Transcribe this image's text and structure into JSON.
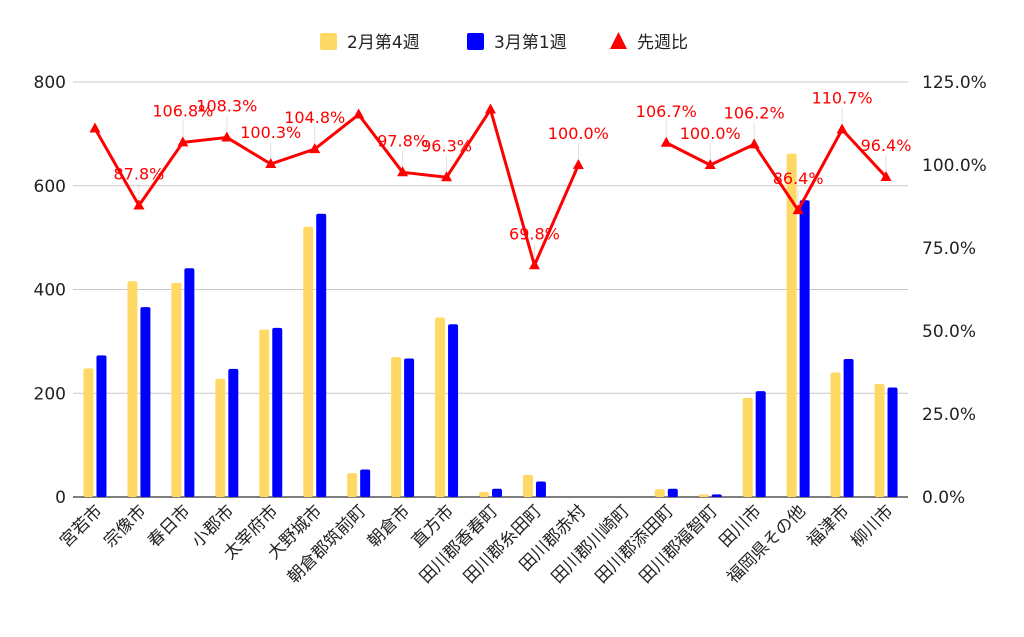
{
  "chart_data": {
    "type": "bar+line",
    "categories": [
      "宮若市",
      "宗像市",
      "春日市",
      "小郡市",
      "太宰府市",
      "大野城市",
      "朝倉郡筑前町",
      "朝倉市",
      "直方市",
      "田川郡香春町",
      "田川郡糸田町",
      "田川郡赤村",
      "田川郡川崎町",
      "田川郡添田町",
      "田川郡福智町",
      "田川市",
      "福岡県その他",
      "福津市",
      "柳川市"
    ],
    "series": [
      {
        "name": "2月第4週",
        "type": "bar",
        "axis": "left",
        "color": "#ffd966",
        "values": [
          248,
          416,
          413,
          228,
          323,
          521,
          46,
          270,
          346,
          10,
          43,
          0,
          0,
          15,
          5,
          191,
          662,
          240,
          218
        ]
      },
      {
        "name": "3月第1週",
        "type": "bar",
        "axis": "left",
        "color": "#0000ff",
        "values": [
          273,
          366,
          441,
          247,
          326,
          546,
          53,
          267,
          333,
          16,
          30,
          0,
          0,
          16,
          5,
          204,
          572,
          266,
          211
        ]
      },
      {
        "name": "先週比",
        "type": "line",
        "axis": "right",
        "color": "#ff0000",
        "values": [
          111.0,
          87.8,
          106.8,
          108.3,
          100.3,
          104.8,
          115.2,
          97.8,
          96.3,
          116.7,
          69.8,
          100.0,
          null,
          106.7,
          100.0,
          106.2,
          86.4,
          110.7,
          96.4
        ],
        "labels": [
          "",
          "87.8%",
          "106.8%",
          "108.3%",
          "100.3%",
          "104.8%",
          "",
          "97.8%",
          "96.3%",
          "",
          "69.8%",
          "100.0%",
          "",
          "106.7%",
          "100.0%",
          "106.2%",
          "86.4%",
          "110.7%",
          "96.4%"
        ]
      }
    ],
    "y_left": {
      "min": 0,
      "max": 800,
      "ticks": [
        "0",
        "200",
        "400",
        "600",
        "800"
      ]
    },
    "y_right": {
      "min": 0,
      "max": 125,
      "ticks": [
        "0.0%",
        "25.0%",
        "50.0%",
        "75.0%",
        "100.0%",
        "125.0%"
      ]
    },
    "legend_position": "top",
    "grid": true
  }
}
